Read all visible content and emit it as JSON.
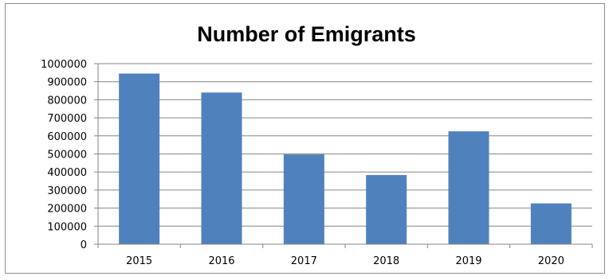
{
  "chart_data": {
    "type": "bar",
    "title": "Number of Emigrants",
    "xlabel": "",
    "ylabel": "",
    "categories": [
      "2015",
      "2016",
      "2017",
      "2018",
      "2019",
      "2020"
    ],
    "values": [
      945000,
      840000,
      497000,
      383000,
      625000,
      226000
    ],
    "ylim": [
      0,
      1000000
    ],
    "yticks": [
      "0",
      "100000",
      "200000",
      "300000",
      "400000",
      "500000",
      "600000",
      "700000",
      "800000",
      "900000",
      "1000000"
    ],
    "grid": true,
    "legend": "none",
    "bar_color": "#4f81bd",
    "grid_color": "#868686"
  }
}
